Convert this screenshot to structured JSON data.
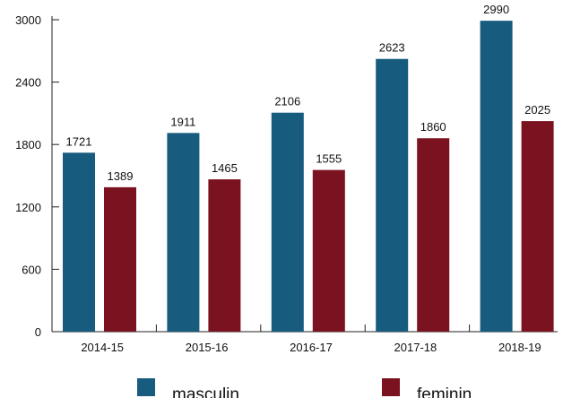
{
  "chart_data": {
    "type": "bar",
    "title": "",
    "xlabel": "",
    "ylabel": "",
    "categories": [
      "2014-15",
      "2015-16",
      "2016-17",
      "2017-18",
      "2018-19"
    ],
    "series": [
      {
        "name": "masculin",
        "color": "#175b7e",
        "values": [
          1721,
          1911,
          2106,
          2623,
          2990
        ],
        "labels": [
          "1721",
          "1911",
          "2106",
          "2623",
          "2990"
        ]
      },
      {
        "name": "feminin",
        "color": "#7b1220",
        "values": [
          1389,
          1465,
          1555,
          1860,
          2025
        ],
        "labels": [
          "1389",
          "1465",
          "1555",
          "1860",
          "2025"
        ]
      }
    ],
    "ylim": [
      0,
      3000
    ],
    "yticks": [
      0,
      600,
      1200,
      1800,
      2400,
      3000
    ],
    "ytick_labels": [
      "0",
      "600",
      "1200",
      "1800",
      "2400",
      "3000"
    ],
    "grid": false,
    "legend_position": "bottom"
  }
}
